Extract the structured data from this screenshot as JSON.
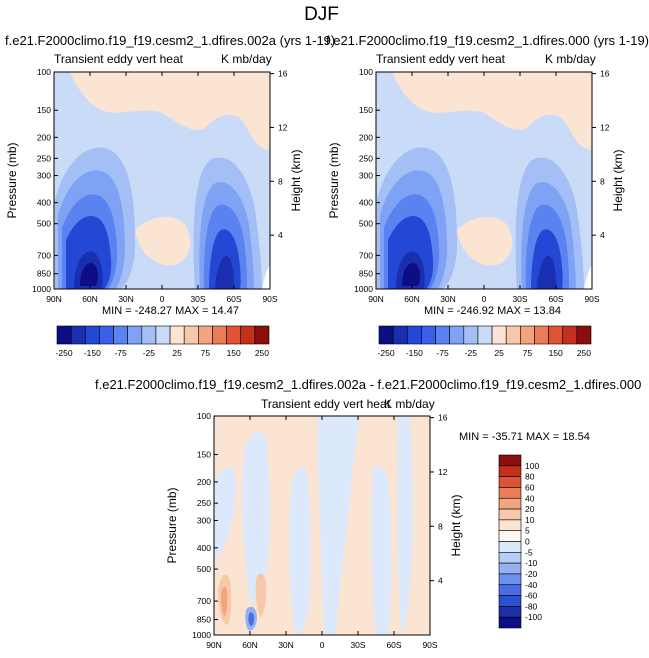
{
  "title": "DJF",
  "panels": [
    {
      "case": "f.e21.F2000climo.f19_f19.cesm2_1.dfires.002a (yrs 1-19)",
      "left_label": "Transient eddy vert heat",
      "right_label": "K mb/day",
      "min_max": "MIN = -248.27  MAX = 14.47"
    },
    {
      "case": "f.e21.F2000climo.f19_f19.cesm2_1.dfires.000 (yrs 1-19)",
      "left_label": "Transient eddy vert heat",
      "right_label": "K mb/day",
      "min_max": "MIN = -246.92  MAX = 13.84"
    },
    {
      "case": "f.e21.F2000climo.f19_f19.cesm2_1.dfires.002a - f.e21.F2000climo.f19_f19.cesm2_1.dfires.000",
      "left_label": "Transient eddy vert heat",
      "right_label": "K mb/day",
      "min_max": "MIN = -35.71  MAX = 18.54"
    }
  ],
  "chart_data": [
    {
      "type": "heatmap",
      "title": "Transient eddy vert heat",
      "units": "K mb/day",
      "xlabel": "",
      "ylabel": "Pressure (mb)",
      "y2label": "Height (km)",
      "x_ticks": [
        "90N",
        "60N",
        "30N",
        "0",
        "30S",
        "60S",
        "90S"
      ],
      "y_ticks": [
        1000,
        850,
        700,
        500,
        400,
        300,
        250,
        200,
        150,
        100
      ],
      "y2_ticks": [
        4,
        8,
        12,
        16
      ],
      "ylim": [
        1000,
        100
      ],
      "min": -248.27,
      "max": 14.47
    },
    {
      "type": "heatmap",
      "title": "Transient eddy vert heat",
      "units": "K mb/day",
      "xlabel": "",
      "ylabel": "Pressure (mb)",
      "y2label": "Height (km)",
      "x_ticks": [
        "90N",
        "60N",
        "30N",
        "0",
        "30S",
        "60S",
        "90S"
      ],
      "y_ticks": [
        1000,
        850,
        700,
        500,
        400,
        300,
        250,
        200,
        150,
        100
      ],
      "y2_ticks": [
        4,
        8,
        12,
        16
      ],
      "ylim": [
        1000,
        100
      ],
      "min": -246.92,
      "max": 13.84
    },
    {
      "type": "heatmap",
      "title": "Transient eddy vert heat",
      "units": "K mb/day",
      "xlabel": "",
      "ylabel": "Pressure (mb)",
      "y2label": "Height (km)",
      "x_ticks": [
        "90N",
        "60N",
        "30N",
        "0",
        "30S",
        "60S",
        "90S"
      ],
      "y_ticks": [
        1000,
        850,
        700,
        500,
        400,
        300,
        250,
        200,
        150,
        100
      ],
      "y2_ticks": [
        4,
        8,
        12,
        16
      ],
      "ylim": [
        1000,
        100
      ],
      "min": -35.71,
      "max": 18.54
    }
  ],
  "colorbar_main": {
    "labels": [
      "-250",
      "-150",
      "-75",
      "-25",
      "25",
      "75",
      "150",
      "250"
    ],
    "colors": [
      "#0d0d85",
      "#1a2fb0",
      "#2448d6",
      "#3a5fe8",
      "#5a82f0",
      "#7fa2f5",
      "#a3bff5",
      "#c9dbf7",
      "#fbe4d2",
      "#f7c9aa",
      "#f2a47f",
      "#ea7d56",
      "#de5433",
      "#c3301b",
      "#8b0d0d"
    ]
  },
  "colorbar_diff": {
    "labels": [
      "100",
      "80",
      "60",
      "40",
      "20",
      "10",
      "5",
      "0",
      "-5",
      "-10",
      "-20",
      "-40",
      "-60",
      "-80",
      "-100"
    ],
    "colors": [
      "#8b0d0d",
      "#c3301b",
      "#de5433",
      "#ea7d56",
      "#f2a47f",
      "#f7c9aa",
      "#fbe4d2",
      "#fff8f0",
      "#dce8fb",
      "#b7ccf6",
      "#94b1f3",
      "#6d8fee",
      "#4a6ee6",
      "#2d4fd2",
      "#1c2ea8",
      "#0d0d85"
    ]
  }
}
